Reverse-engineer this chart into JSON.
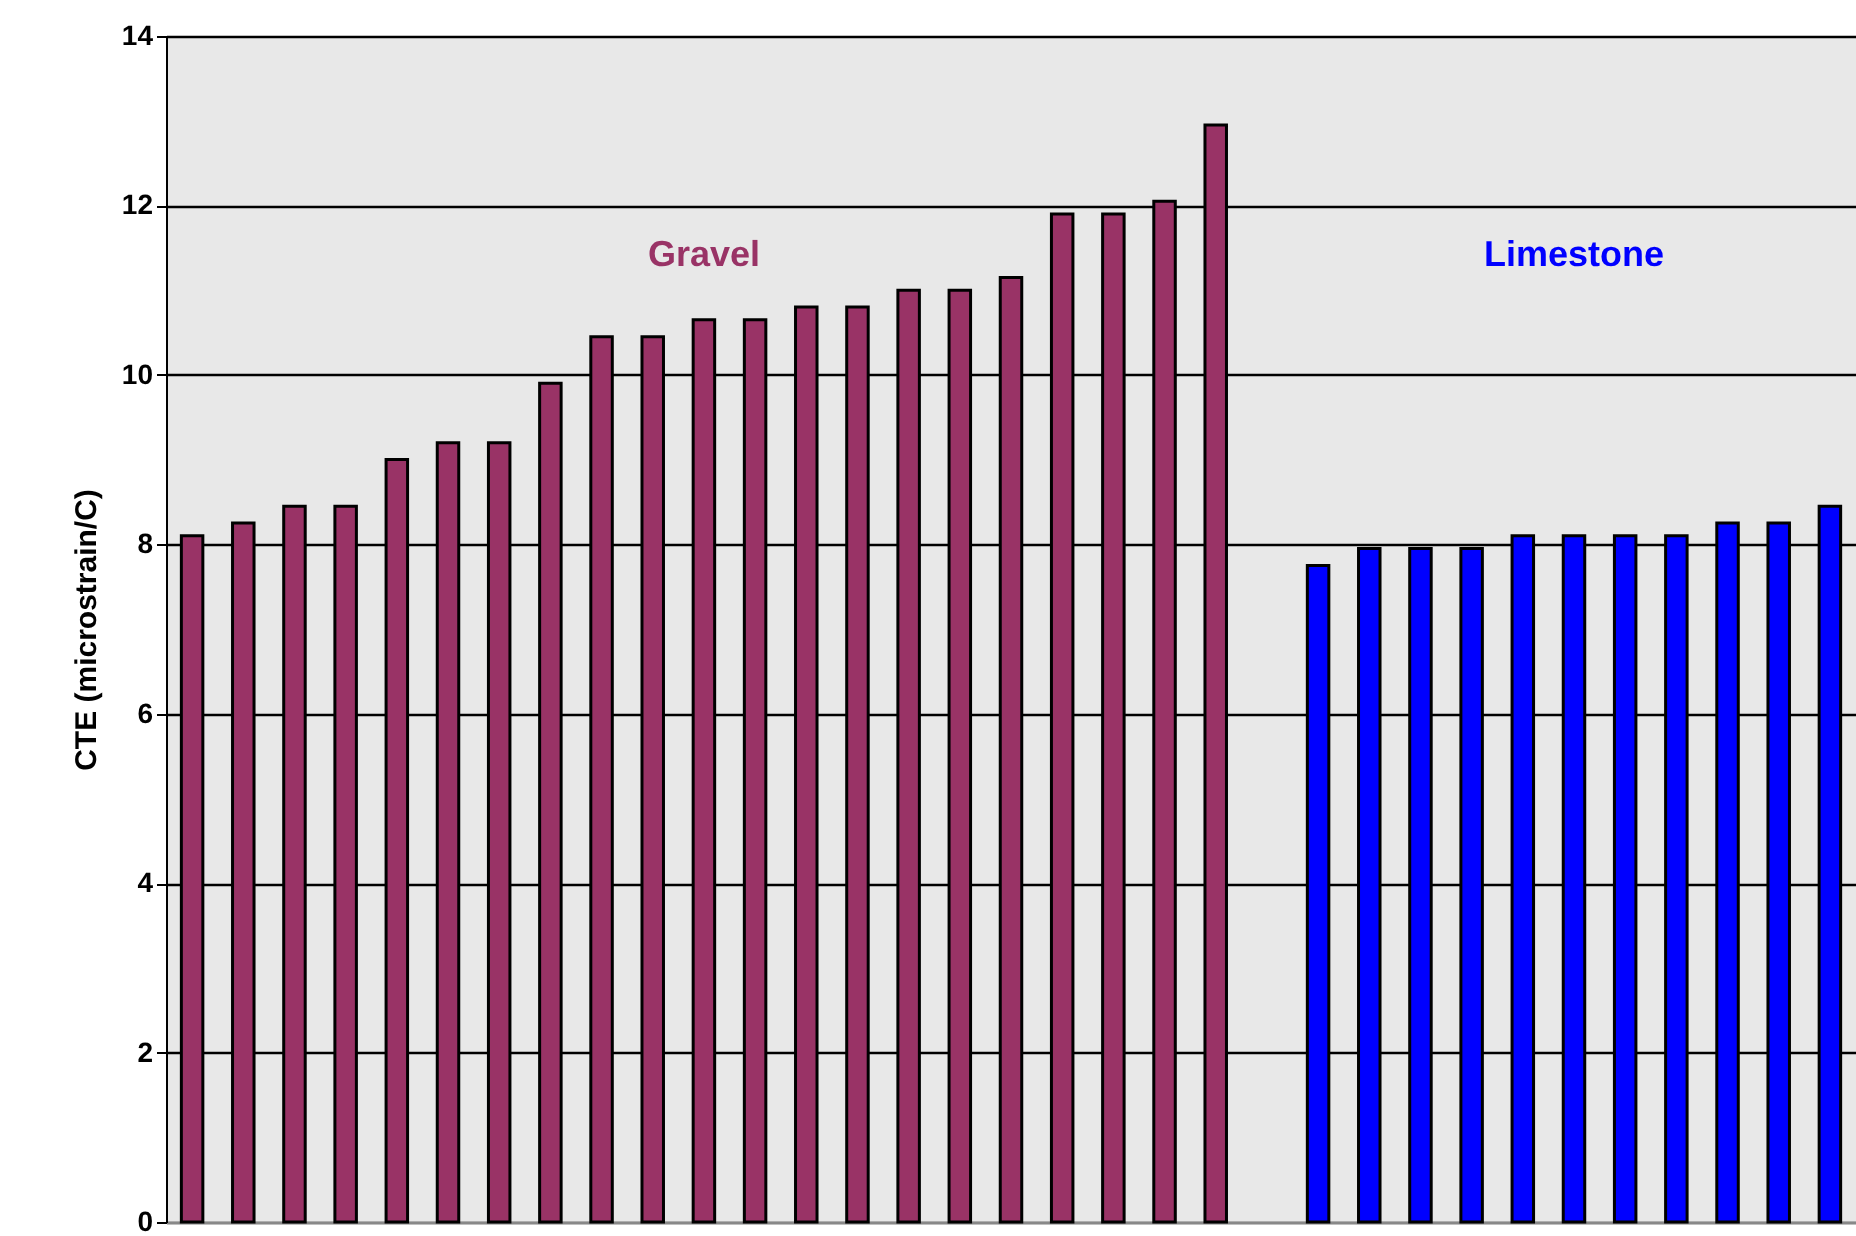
{
  "chart_data": {
    "type": "bar",
    "ylabel": "CTE (microstrain/C)",
    "categories": [
      null,
      null,
      null,
      null,
      null,
      null,
      null,
      null,
      null,
      null,
      null,
      null,
      null,
      null,
      null,
      null,
      null,
      null,
      null,
      null,
      null,
      null,
      null,
      null,
      null,
      null,
      null,
      null,
      null,
      null,
      null,
      null,
      null
    ],
    "series": [
      {
        "name": "Gravel",
        "color": "#993366",
        "values": [
          8.1,
          8.25,
          8.45,
          8.45,
          9.0,
          9.2,
          9.2,
          9.9,
          10.45,
          10.45,
          10.65,
          10.65,
          10.8,
          10.8,
          11.0,
          11.0,
          11.15,
          11.9,
          11.9,
          12.05,
          12.95,
          null,
          null,
          null,
          null,
          null,
          null,
          null,
          null,
          null,
          null,
          null,
          null
        ]
      },
      {
        "name": "Limestone",
        "color": "#0000ff",
        "values": [
          null,
          null,
          null,
          null,
          null,
          null,
          null,
          null,
          null,
          null,
          null,
          null,
          null,
          null,
          null,
          null,
          null,
          null,
          null,
          null,
          null,
          null,
          7.75,
          7.95,
          7.95,
          7.95,
          8.1,
          8.1,
          8.1,
          8.1,
          8.25,
          8.25,
          8.45
        ]
      }
    ],
    "ylim": [
      0,
      14
    ],
    "yticks": [
      0,
      2,
      4,
      6,
      8,
      10,
      12,
      14
    ],
    "grid": "y",
    "tick_labels": "y"
  }
}
